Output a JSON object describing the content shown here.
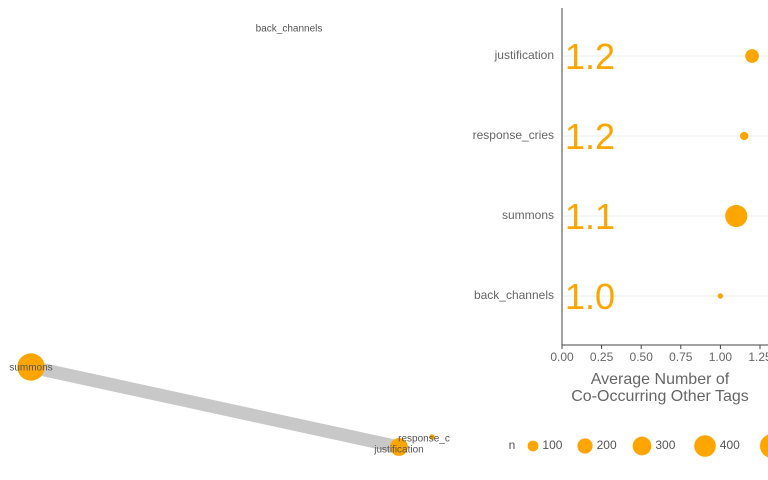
{
  "colors": {
    "point": "#ffa500",
    "edge": "#c8c8c8",
    "grid": "#ebebeb",
    "axis": "#444444",
    "text": "#666666"
  },
  "network": {
    "nodes": [
      {
        "name": "back_channels",
        "label": "back_channels",
        "n": 0
      },
      {
        "name": "summons",
        "label": "summons",
        "n": 260
      },
      {
        "name": "justification",
        "label": "justification",
        "n": 110
      },
      {
        "name": "response_cries",
        "label": "response_c",
        "n": 10
      }
    ],
    "edges": [
      {
        "from": "summons",
        "to": "justification"
      }
    ]
  },
  "chart_data": {
    "type": "scatter",
    "categories": [
      "justification",
      "response_cries",
      "summons",
      "back_channels"
    ],
    "values": [
      1.2,
      1.15,
      1.1,
      1.0
    ],
    "value_labels": [
      "1.2",
      "1.2",
      "1.1",
      "1.0"
    ],
    "sizes": [
      160,
      60,
      420,
      25
    ],
    "xlabel": "Average Number of\nCo-Occurring Other Tags",
    "xlim": [
      0,
      1.25
    ],
    "xticks": [
      "0.00",
      "0.25",
      "0.50",
      "0.75",
      "1.00",
      "1.25"
    ],
    "grid": true,
    "legend": {
      "title": "n",
      "position": "bottom",
      "entries": [
        {
          "label": "100",
          "value": 100
        },
        {
          "label": "200",
          "value": 200
        },
        {
          "label": "300",
          "value": 300
        },
        {
          "label": "400",
          "value": 400
        }
      ]
    }
  }
}
